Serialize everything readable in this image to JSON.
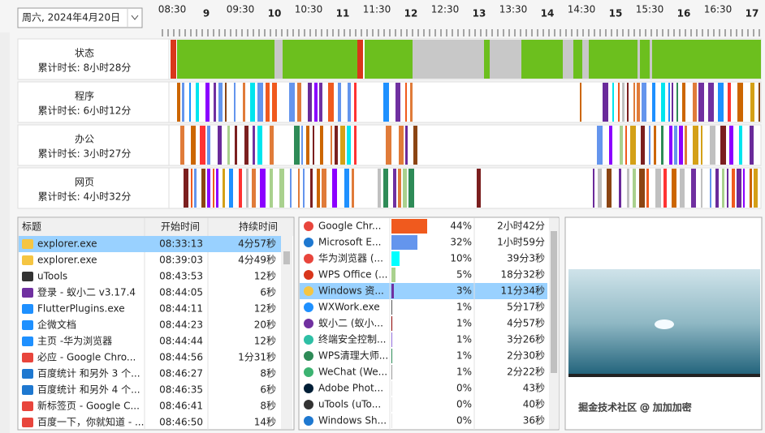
{
  "date": "周六, 2024年4月20日",
  "timeline": {
    "labels": [
      "08:30",
      "9",
      "09:30",
      "10",
      "10:30",
      "11",
      "11:30",
      "12",
      "12:30",
      "13",
      "13:30",
      "14",
      "14:30",
      "15",
      "15:30",
      "16",
      "16:30",
      "17"
    ]
  },
  "rows": [
    {
      "title": "状态",
      "total": "累计时长: 8小时28分"
    },
    {
      "title": "程序",
      "total": "累计时长: 6小时12分"
    },
    {
      "title": "办公",
      "total": "累计时长: 3小时27分"
    },
    {
      "title": "网页",
      "total": "累计时长: 4小时32分"
    }
  ],
  "table": {
    "headers": [
      "标题",
      "开始时间",
      "持续时间"
    ],
    "rows": [
      [
        "explorer.exe",
        "08:33:13",
        "4分57秒"
      ],
      [
        "explorer.exe",
        "08:39:03",
        "4分49秒"
      ],
      [
        "uTools",
        "08:43:53",
        "12秒"
      ],
      [
        "登录 - 蚁小二 v3.17.4",
        "08:44:05",
        "6秒"
      ],
      [
        "FlutterPlugins.exe",
        "08:44:11",
        "12秒"
      ],
      [
        "企微文档",
        "08:44:23",
        "20秒"
      ],
      [
        "主页 -华为浏览器",
        "08:44:44",
        "12秒"
      ],
      [
        "必应 - Google Chro...",
        "08:44:56",
        "1分31秒"
      ],
      [
        "百度统计 和另外 3 个...",
        "08:46:27",
        "8秒"
      ],
      [
        "百度统计 和另外 4 个...",
        "08:46:35",
        "6秒"
      ],
      [
        "新标签页 - Google C...",
        "08:46:41",
        "8秒"
      ],
      [
        "百度一下，你就知道 - ...",
        "08:46:50",
        "14秒"
      ]
    ]
  },
  "apps": {
    "rows": [
      {
        "name": "Google Chr...",
        "percent": "44%",
        "duration": "2小时42分"
      },
      {
        "name": "Microsoft E...",
        "percent": "32%",
        "duration": "1小时59分"
      },
      {
        "name": "华为浏览器 (...",
        "percent": "10%",
        "duration": "39分3秒"
      },
      {
        "name": "WPS Office (...",
        "percent": "5%",
        "duration": "18分32秒"
      },
      {
        "name": "Windows 资...",
        "percent": "3%",
        "duration": "11分34秒"
      },
      {
        "name": "WXWork.exe",
        "percent": "1%",
        "duration": "5分17秒"
      },
      {
        "name": "蚁小二 (蚁小...",
        "percent": "1%",
        "duration": "4分57秒"
      },
      {
        "name": "终端安全控制...",
        "percent": "1%",
        "duration": "3分26秒"
      },
      {
        "name": "WPS清理大师...",
        "percent": "1%",
        "duration": "2分30秒"
      },
      {
        "name": "WeChat (We...",
        "percent": "1%",
        "duration": "2分22秒"
      },
      {
        "name": "Adobe Phot...",
        "percent": "0%",
        "duration": "43秒"
      },
      {
        "name": "uTools (uTo...",
        "percent": "0%",
        "duration": "40秒"
      },
      {
        "name": "Windows Sh...",
        "percent": "0%",
        "duration": "36秒"
      }
    ]
  },
  "watermark": "掘金技术社区 @ 加加加密"
}
